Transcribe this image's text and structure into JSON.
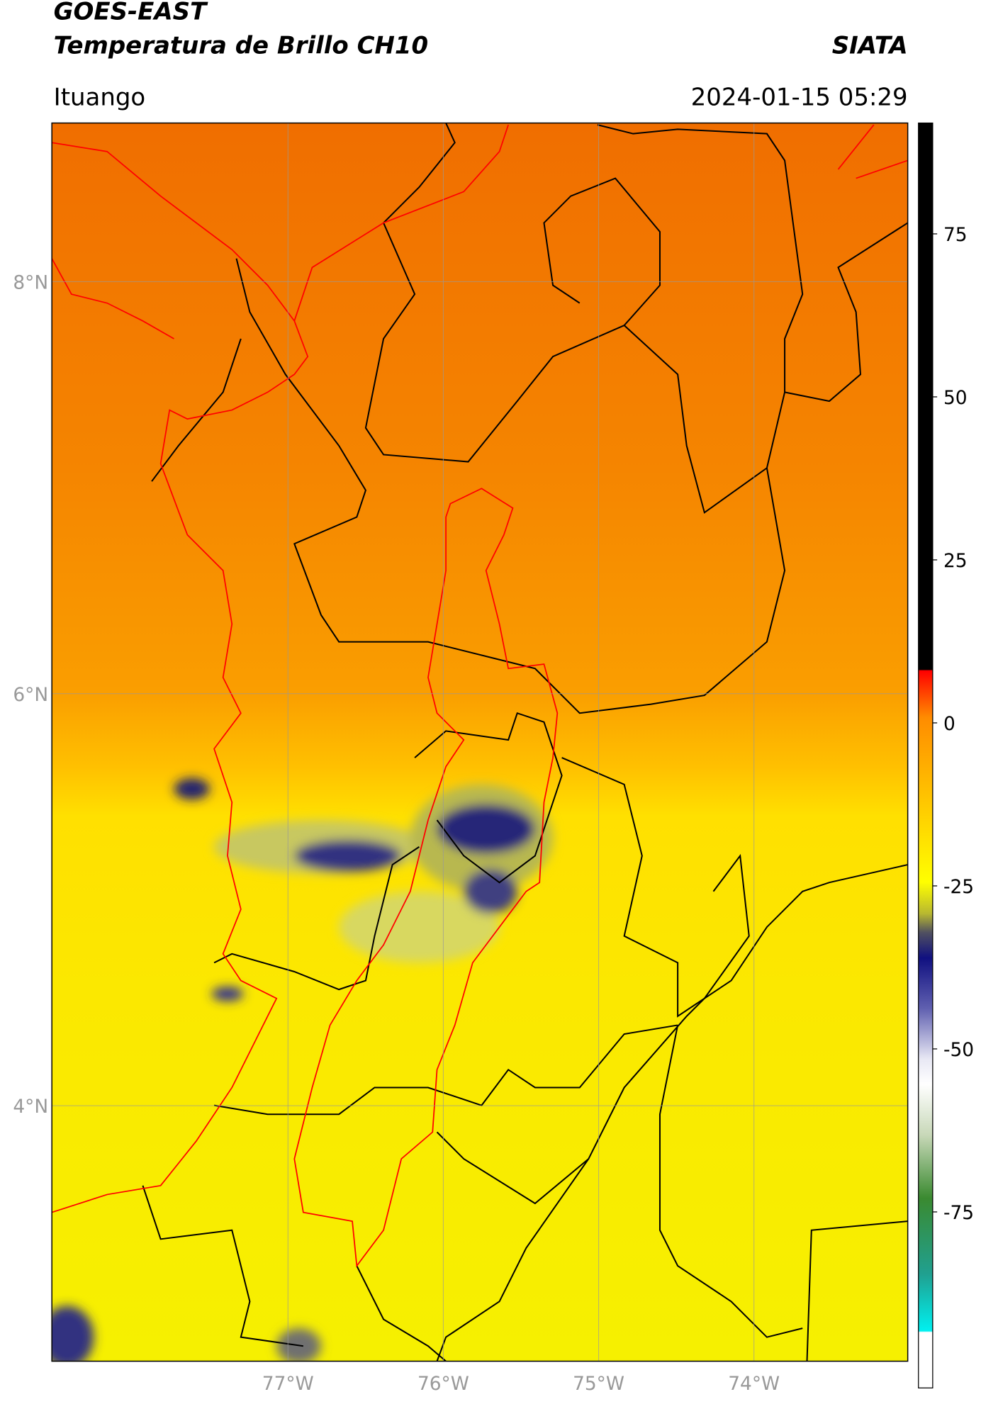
{
  "header": {
    "title": "GOES-EAST",
    "subtitle": "Temperatura de Brillo CH10",
    "source": "SIATA",
    "location": "Ituango",
    "timestamp": "2024-01-15 05:29"
  },
  "map": {
    "xlim": [
      -78.52,
      -73.01
    ],
    "ylim": [
      2.76,
      8.77
    ],
    "xticks": [
      {
        "value": -77,
        "label": "77°W"
      },
      {
        "value": -76,
        "label": "76°W"
      },
      {
        "value": -75,
        "label": "75°W"
      },
      {
        "value": -74,
        "label": "74°W"
      }
    ],
    "yticks": [
      {
        "value": 8,
        "label": "8°N"
      },
      {
        "value": 6,
        "label": "6°N"
      },
      {
        "value": 4,
        "label": "4°N"
      }
    ],
    "grid": true
  },
  "colorbar": {
    "lim": [
      -102,
      92
    ],
    "ticks": [
      75,
      50,
      25,
      0,
      -25,
      -50,
      -75
    ]
  }
}
